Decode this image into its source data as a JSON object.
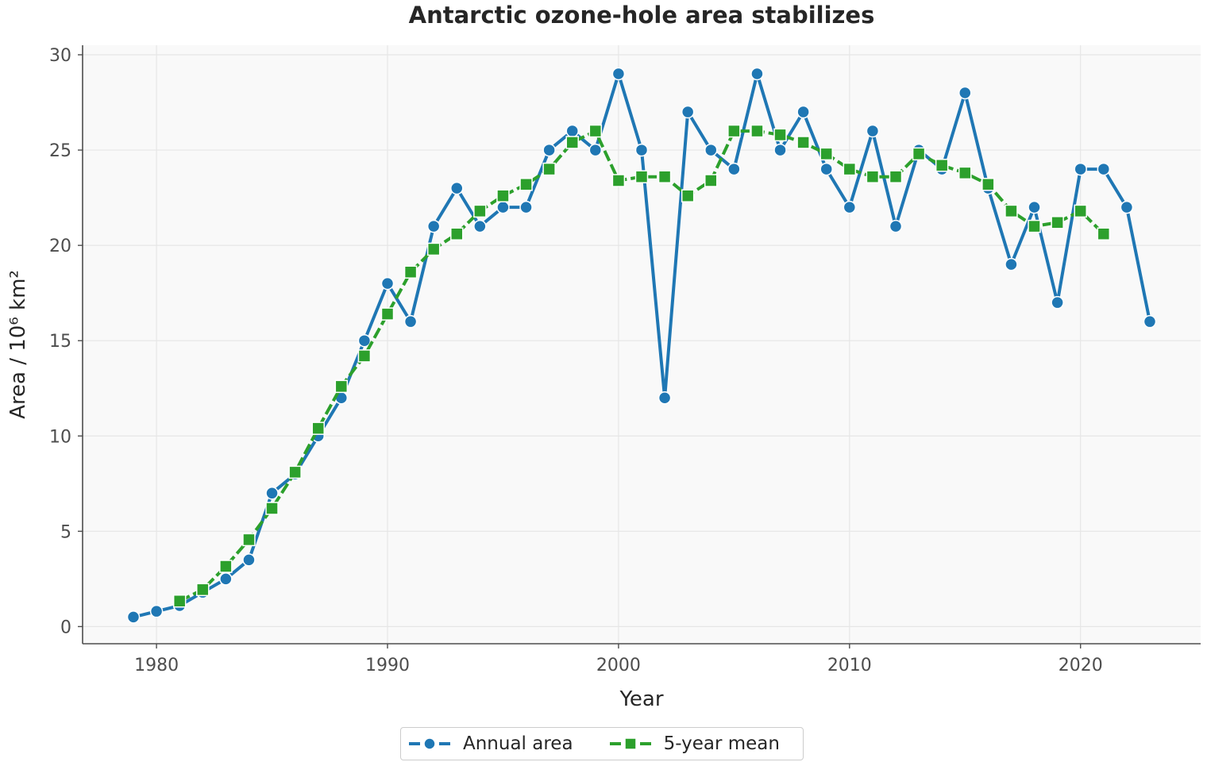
{
  "chart_data": {
    "type": "line",
    "title": "Antarctic ozone-hole area stabilizes",
    "xlabel": "Year",
    "ylabel": "Area / 10⁶ km²",
    "xlim": [
      1976.8,
      2025.2
    ],
    "ylim": [
      -0.9,
      30.5
    ],
    "x_ticks": [
      1980,
      1990,
      2000,
      2010,
      2020
    ],
    "y_ticks": [
      0,
      5,
      10,
      15,
      20,
      25,
      30
    ],
    "grid": true,
    "legend_position": "bottom-center",
    "series": [
      {
        "name": "Annual area",
        "color": "#1f77b4",
        "marker": "circle",
        "line_style": "solid",
        "x": [
          1979,
          1980,
          1981,
          1982,
          1983,
          1984,
          1985,
          1986,
          1987,
          1988,
          1989,
          1990,
          1991,
          1992,
          1993,
          1994,
          1995,
          1996,
          1997,
          1998,
          1999,
          2000,
          2001,
          2002,
          2003,
          2004,
          2005,
          2006,
          2007,
          2008,
          2009,
          2010,
          2011,
          2012,
          2013,
          2014,
          2015,
          2016,
          2017,
          2018,
          2019,
          2020,
          2021,
          2022,
          2023
        ],
        "y": [
          0.5,
          0.8,
          1.1,
          1.8,
          2.5,
          3.5,
          7,
          8,
          10,
          12,
          15,
          18,
          16,
          21,
          23,
          21,
          22,
          22,
          25,
          26,
          25,
          29,
          25,
          12,
          27,
          25,
          24,
          29,
          25,
          27,
          24,
          22,
          26,
          21,
          25,
          24,
          28,
          23,
          19,
          22,
          17,
          24,
          24,
          22,
          16
        ]
      },
      {
        "name": "5-year mean",
        "color": "#2ca02c",
        "marker": "square",
        "line_style": "dashed",
        "x": [
          1981,
          1982,
          1983,
          1984,
          1985,
          1986,
          1987,
          1988,
          1989,
          1990,
          1991,
          1992,
          1993,
          1994,
          1995,
          1996,
          1997,
          1998,
          1999,
          2000,
          2001,
          2002,
          2003,
          2004,
          2005,
          2006,
          2007,
          2008,
          2009,
          2010,
          2011,
          2012,
          2013,
          2014,
          2015,
          2016,
          2017,
          2018,
          2019,
          2020,
          2021
        ],
        "y": [
          1.34,
          1.94,
          3.16,
          4.56,
          6.2,
          8.1,
          10.4,
          12.6,
          14.2,
          16.4,
          18.6,
          19.8,
          20.6,
          21.8,
          22.6,
          23.2,
          24,
          25.4,
          26,
          23.4,
          23.6,
          23.6,
          22.6,
          23.4,
          26,
          26,
          25.8,
          25.4,
          24.8,
          24,
          23.6,
          23.6,
          24.8,
          24.2,
          23.8,
          23.2,
          21.8,
          21,
          21.2,
          21.8,
          20.6
        ]
      }
    ]
  },
  "legend": {
    "items": [
      {
        "label": "Annual area",
        "color": "#1f77b4",
        "marker": "circle",
        "dash": "solid"
      },
      {
        "label": "5-year mean",
        "color": "#2ca02c",
        "marker": "square",
        "dash": "dashed"
      }
    ]
  },
  "style": {
    "plot_background": "#f9f9f9",
    "grid_color": "#e6e6e6",
    "axis_color": "#4d4d4d",
    "marker_edge_color": "#ffffff"
  }
}
